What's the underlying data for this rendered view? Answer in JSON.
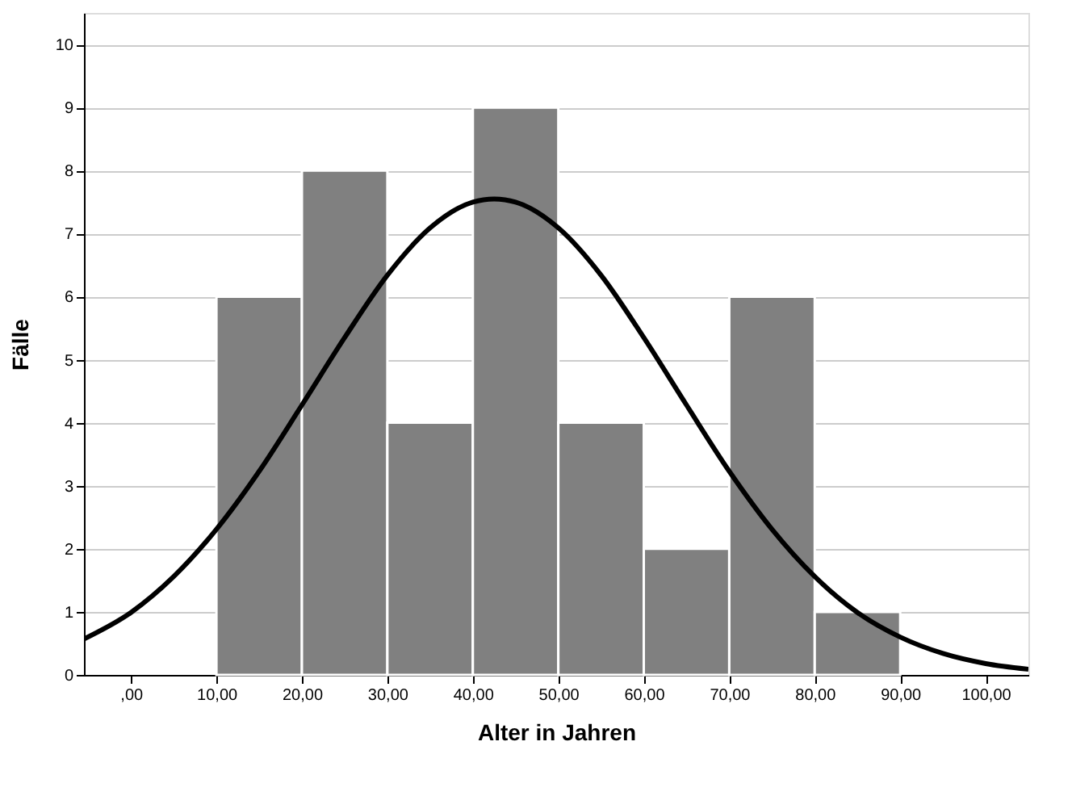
{
  "chart_data": {
    "type": "histogram",
    "xlabel": "Alter in Jahren",
    "ylabel": "Fälle",
    "bins": [
      10,
      20,
      30,
      40,
      50,
      60,
      70,
      80,
      90
    ],
    "values": [
      6,
      8,
      4,
      9,
      4,
      2,
      6,
      1
    ],
    "color": "#808080",
    "series": [
      {
        "type": "line",
        "color": "#000000",
        "line_style": "solid",
        "x": [
          -5.5,
          0,
          5,
          10,
          15,
          20,
          25,
          30,
          35,
          40,
          42.5,
          45,
          50,
          55,
          60,
          65,
          70,
          75,
          80,
          85,
          90,
          95,
          100,
          105
        ],
        "values": [
          0.57,
          0.99,
          1.56,
          2.31,
          3.23,
          4.28,
          5.35,
          6.34,
          7.09,
          7.5,
          7.55,
          7.5,
          7.09,
          6.34,
          5.35,
          4.28,
          3.23,
          2.31,
          1.56,
          0.99,
          0.6,
          0.34,
          0.18,
          0.09
        ]
      }
    ],
    "xlim": [
      -5.5,
      105
    ],
    "ylim": [
      0,
      10.5
    ],
    "xticks": [
      {
        "value": 0,
        "label": ",00"
      },
      {
        "value": 10,
        "label": "10,00"
      },
      {
        "value": 20,
        "label": "20,00"
      },
      {
        "value": 30,
        "label": "30,00"
      },
      {
        "value": 40,
        "label": "40,00"
      },
      {
        "value": 50,
        "label": "50,00"
      },
      {
        "value": 60,
        "label": "60,00"
      },
      {
        "value": 70,
        "label": "70,00"
      },
      {
        "value": 80,
        "label": "80,00"
      },
      {
        "value": 90,
        "label": "90,00"
      },
      {
        "value": 100,
        "label": "100,00"
      }
    ],
    "yticks": [
      0,
      1,
      2,
      3,
      4,
      5,
      6,
      7,
      8,
      9,
      10
    ],
    "grid": "y"
  }
}
